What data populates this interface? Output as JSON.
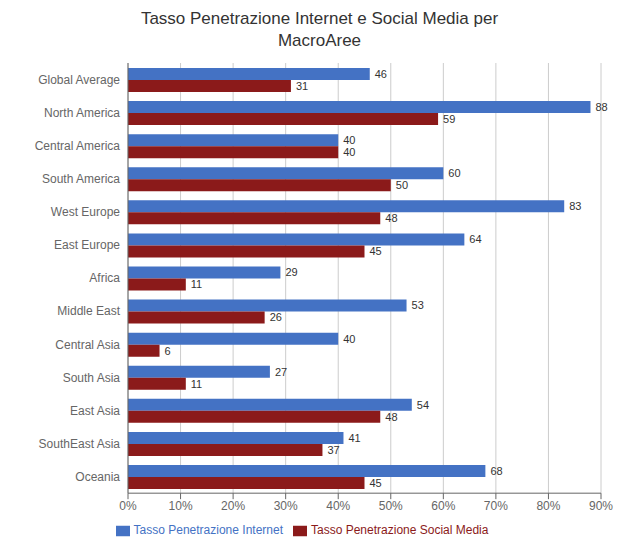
{
  "chart_data": {
    "type": "bar",
    "orientation": "horizontal",
    "title": "Tasso Penetrazione Internet e Social Media per\nMacroAree",
    "categories": [
      "Global Average",
      "North America",
      "Central America",
      "South America",
      "West Europe",
      "East Europe",
      "Africa",
      "Middle East",
      "Central Asia",
      "South Asia",
      "East Asia",
      "SouthEast Asia",
      "Oceania"
    ],
    "series": [
      {
        "name": "Tasso Penetrazione Internet",
        "color": "#4472C4",
        "values": [
          46,
          88,
          40,
          60,
          83,
          64,
          29,
          53,
          40,
          27,
          54,
          41,
          68
        ]
      },
      {
        "name": "Tasso Penetrazione Social Media",
        "color": "#8B1A1A",
        "values": [
          31,
          59,
          40,
          50,
          48,
          45,
          11,
          26,
          6,
          11,
          48,
          37,
          45
        ]
      }
    ],
    "xlim": [
      0,
      90
    ],
    "xticks": [
      {
        "value": 0,
        "label": "0%"
      },
      {
        "value": 10,
        "label": "10%"
      },
      {
        "value": 20,
        "label": "20%"
      },
      {
        "value": 30,
        "label": "30%"
      },
      {
        "value": 40,
        "label": "40%"
      },
      {
        "value": 50,
        "label": "50%"
      },
      {
        "value": 60,
        "label": "60%"
      },
      {
        "value": 70,
        "label": "70%"
      },
      {
        "value": 80,
        "label": "80%"
      },
      {
        "value": 90,
        "label": "90%"
      }
    ],
    "grid": true,
    "legend": "bottom",
    "data_labels": true
  }
}
